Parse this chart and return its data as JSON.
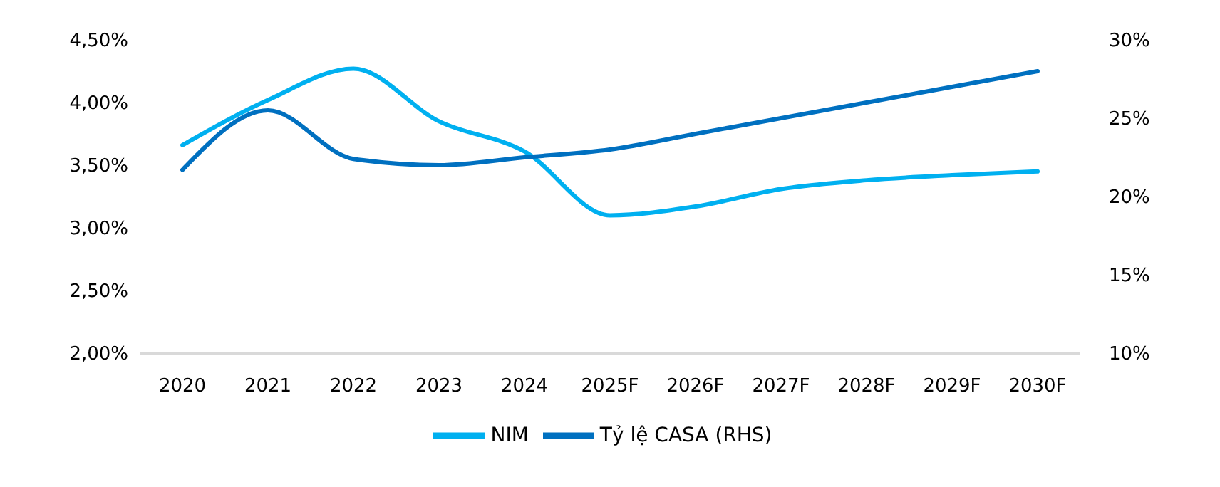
{
  "chart_data": {
    "type": "line",
    "categories": [
      "2020",
      "2021",
      "2022",
      "2023",
      "2024",
      "2025F",
      "2026F",
      "2027F",
      "2028F",
      "2029F",
      "2030F"
    ],
    "series": [
      {
        "name": "NIM",
        "color": "#00b0f0",
        "values": [
          3.66,
          4.02,
          4.27,
          3.85,
          3.61,
          3.1,
          3.17,
          3.31,
          3.38,
          3.42,
          3.45
        ]
      },
      {
        "name": "Tỷ lệ CASA (RHS)",
        "color": "#0070c0",
        "axis": "y2",
        "values": [
          21.7,
          25.5,
          22.4,
          22.0,
          22.5,
          23.0,
          24.0,
          25.0,
          26.0,
          27.0,
          28.0
        ]
      }
    ],
    "ylim": [
      2,
      4.5
    ],
    "yticks": [
      {
        "value": 2,
        "label": "2,00%"
      },
      {
        "value": 2.5,
        "label": "2,50%"
      },
      {
        "value": 3,
        "label": "3,00%"
      },
      {
        "value": 3.5,
        "label": "3,50%"
      },
      {
        "value": 4,
        "label": "4,00%"
      },
      {
        "value": 4.5,
        "label": "4,50%"
      }
    ],
    "y2lim": [
      10,
      30
    ],
    "y2ticks": [
      {
        "value": 10,
        "label": "10%"
      },
      {
        "value": 15,
        "label": "15%"
      },
      {
        "value": 20,
        "label": "20%"
      },
      {
        "value": 25,
        "label": "25%"
      },
      {
        "value": 30,
        "label": "30%"
      }
    ],
    "legend": "bottom",
    "marker": "none",
    "line_style": "solid"
  }
}
